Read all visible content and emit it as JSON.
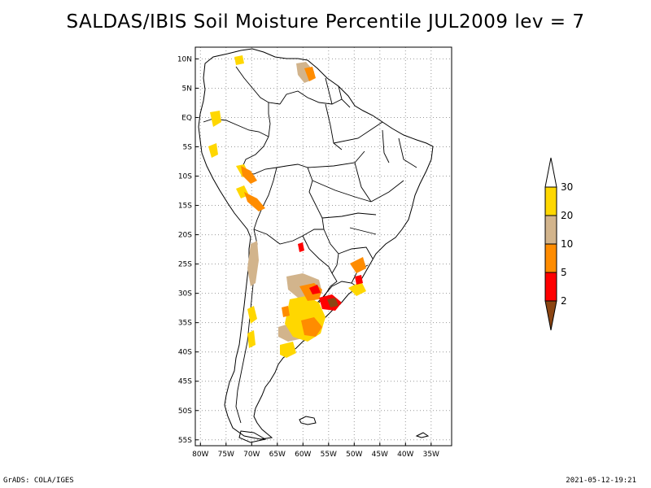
{
  "title": "SALDAS/IBIS Soil Moisture Percentile JUL2009 lev = 7",
  "footer": {
    "left": "GrADS: COLA/IGES",
    "right": "2021-05-12-19:21"
  },
  "map": {
    "region": "South America",
    "lon_range": [
      -81,
      -31
    ],
    "lat_range": [
      -56,
      12
    ],
    "lat_labels": [
      {
        "lat": 10,
        "label": "10N"
      },
      {
        "lat": 5,
        "label": "5N"
      },
      {
        "lat": 0,
        "label": "EQ"
      },
      {
        "lat": -5,
        "label": "5S"
      },
      {
        "lat": -10,
        "label": "10S"
      },
      {
        "lat": -15,
        "label": "15S"
      },
      {
        "lat": -20,
        "label": "20S"
      },
      {
        "lat": -25,
        "label": "25S"
      },
      {
        "lat": -30,
        "label": "30S"
      },
      {
        "lat": -35,
        "label": "35S"
      },
      {
        "lat": -40,
        "label": "40S"
      },
      {
        "lat": -45,
        "label": "45S"
      },
      {
        "lat": -50,
        "label": "50S"
      },
      {
        "lat": -55,
        "label": "55S"
      }
    ],
    "lon_labels": [
      {
        "lon": -80,
        "label": "80W"
      },
      {
        "lon": -75,
        "label": "75W"
      },
      {
        "lon": -70,
        "label": "70W"
      },
      {
        "lon": -65,
        "label": "65W"
      },
      {
        "lon": -60,
        "label": "60W"
      },
      {
        "lon": -55,
        "label": "55W"
      },
      {
        "lon": -50,
        "label": "50W"
      },
      {
        "lon": -45,
        "label": "45W"
      },
      {
        "lon": -40,
        "label": "40W"
      },
      {
        "lon": -35,
        "label": "35W"
      }
    ],
    "grid": "dotted"
  },
  "colorbar": {
    "levels": [
      "30",
      "20",
      "10",
      "5",
      "2"
    ],
    "colors": {
      "above_30": "#ffffff",
      "c20_30": "#ffd700",
      "c10_20": "#d2b48c",
      "c5_10": "#ff8c00",
      "c2_5": "#ff0000",
      "below_2": "#8b4513"
    }
  }
}
